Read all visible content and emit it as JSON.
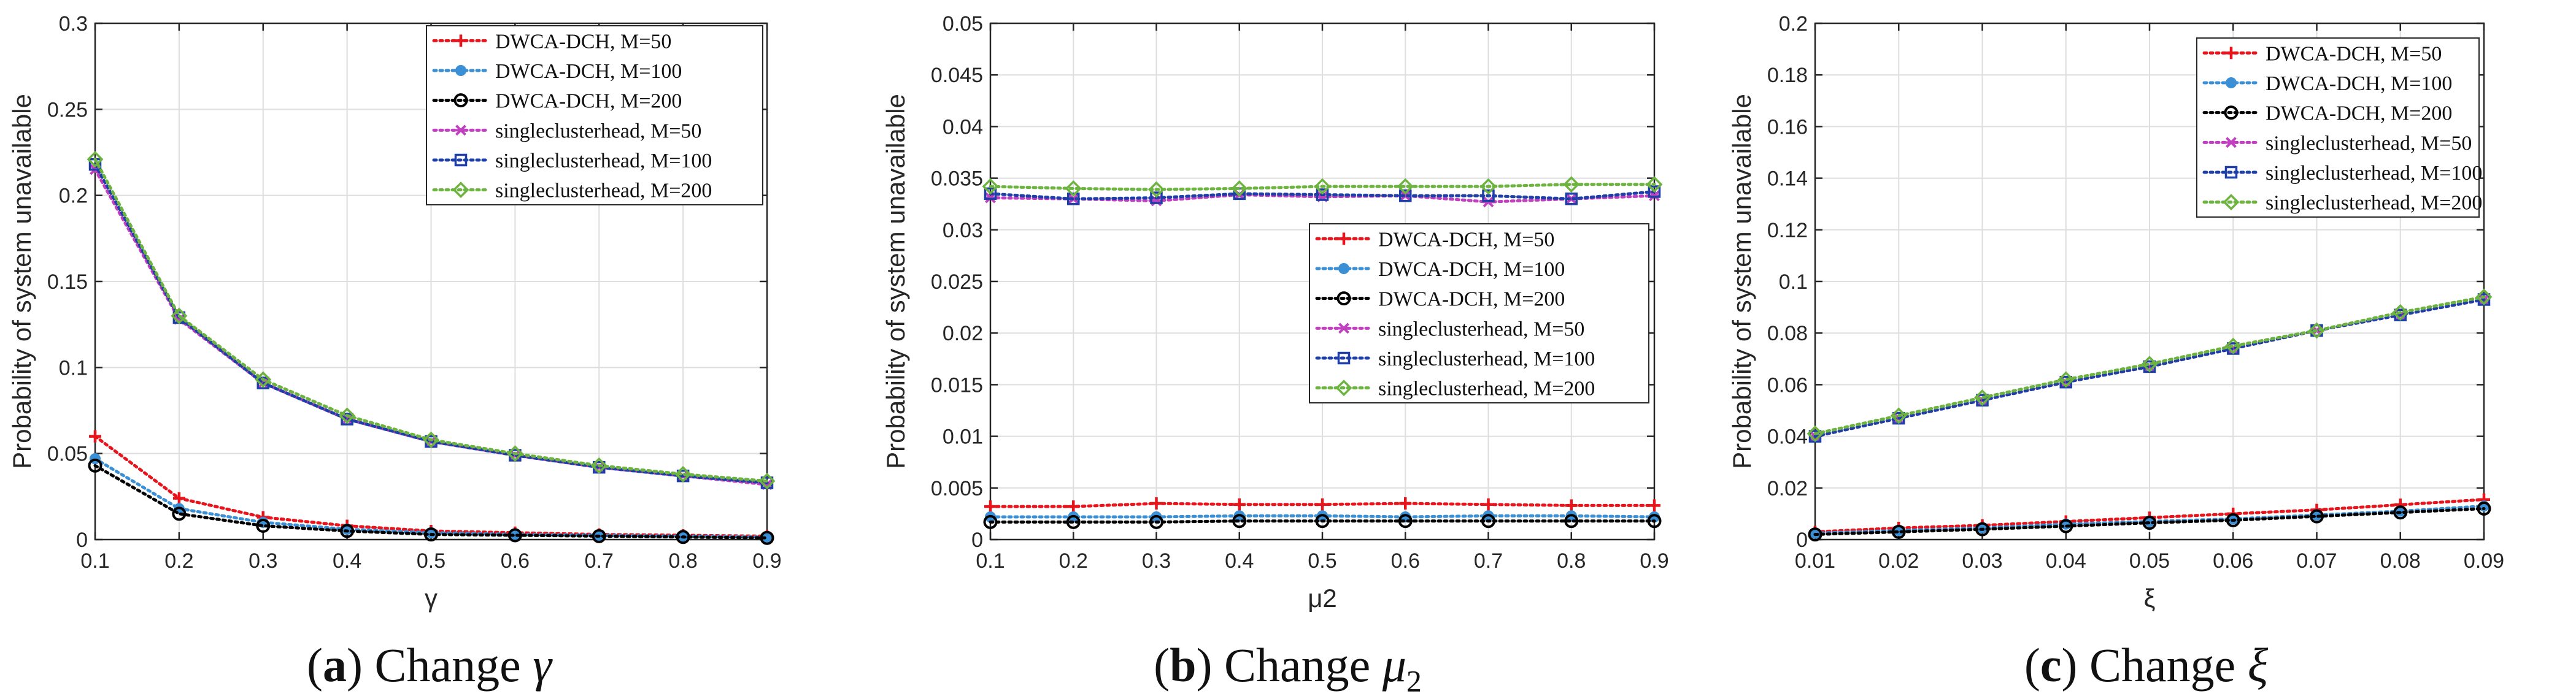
{
  "chart_data": [
    {
      "type": "line",
      "caption": {
        "label": "a",
        "text": "Change",
        "symbol": "γ"
      },
      "xlabel": "γ",
      "ylabel": "Probability of system unavailable",
      "x": [
        0.1,
        0.2,
        0.3,
        0.4,
        0.5,
        0.6,
        0.7,
        0.8,
        0.9
      ],
      "xlim": [
        0.1,
        0.9
      ],
      "ylim": [
        0,
        0.3
      ],
      "xticks": [
        "0.1",
        "0.2",
        "0.3",
        "0.4",
        "0.5",
        "0.6",
        "0.7",
        "0.8",
        "0.9"
      ],
      "yticks": [
        "0",
        "0.05",
        "0.1",
        "0.15",
        "0.2",
        "0.25",
        "0.3"
      ],
      "grid": true,
      "legend_position": "top-right",
      "series": [
        {
          "name": "DWCA-DCH, M=50",
          "color": "#e8141b",
          "marker": "plus",
          "values": [
            0.06,
            0.024,
            0.013,
            0.008,
            0.005,
            0.004,
            0.003,
            0.0025,
            0.002
          ]
        },
        {
          "name": "DWCA-DCH, M=100",
          "color": "#3b8fd4",
          "marker": "dot",
          "values": [
            0.047,
            0.018,
            0.01,
            0.006,
            0.004,
            0.003,
            0.0025,
            0.002,
            0.0015
          ]
        },
        {
          "name": "DWCA-DCH, M=200",
          "color": "#000000",
          "marker": "circle",
          "values": [
            0.043,
            0.015,
            0.008,
            0.005,
            0.003,
            0.0025,
            0.002,
            0.0015,
            0.001
          ]
        },
        {
          "name": "singleclusterhead, M=50",
          "color": "#c040c0",
          "marker": "cross",
          "values": [
            0.215,
            0.128,
            0.091,
            0.07,
            0.057,
            0.049,
            0.042,
            0.037,
            0.032
          ]
        },
        {
          "name": "singleclusterhead, M=100",
          "color": "#1f3fa8",
          "marker": "square",
          "values": [
            0.218,
            0.129,
            0.091,
            0.07,
            0.057,
            0.049,
            0.042,
            0.037,
            0.033
          ]
        },
        {
          "name": "singleclusterhead, M=200",
          "color": "#6db33f",
          "marker": "diamond",
          "values": [
            0.221,
            0.13,
            0.093,
            0.072,
            0.058,
            0.05,
            0.043,
            0.038,
            0.034
          ]
        }
      ]
    },
    {
      "type": "line",
      "caption": {
        "label": "b",
        "text": "Change",
        "symbol": "μ",
        "sub": "2"
      },
      "xlabel": "μ2",
      "ylabel": "Probability of system unavailable",
      "x": [
        0.1,
        0.2,
        0.3,
        0.4,
        0.5,
        0.6,
        0.7,
        0.8,
        0.9
      ],
      "xlim": [
        0.1,
        0.9
      ],
      "ylim": [
        0,
        0.05
      ],
      "xticks": [
        "0.1",
        "0.2",
        "0.3",
        "0.4",
        "0.5",
        "0.6",
        "0.7",
        "0.8",
        "0.9"
      ],
      "yticks": [
        "0",
        "0.005",
        "0.01",
        "0.015",
        "0.02",
        "0.025",
        "0.03",
        "0.035",
        "0.04",
        "0.045",
        "0.05"
      ],
      "grid": true,
      "legend_position": "center-right",
      "series": [
        {
          "name": "DWCA-DCH, M=50",
          "color": "#e8141b",
          "marker": "plus",
          "values": [
            0.0032,
            0.0032,
            0.0035,
            0.0034,
            0.0034,
            0.0035,
            0.0034,
            0.0033,
            0.0033
          ]
        },
        {
          "name": "DWCA-DCH, M=100",
          "color": "#3b8fd4",
          "marker": "dot",
          "values": [
            0.0022,
            0.0022,
            0.0022,
            0.0023,
            0.0023,
            0.0022,
            0.0023,
            0.0023,
            0.0022
          ]
        },
        {
          "name": "DWCA-DCH, M=200",
          "color": "#000000",
          "marker": "circle",
          "values": [
            0.0017,
            0.0017,
            0.0017,
            0.0018,
            0.0018,
            0.0018,
            0.0018,
            0.0018,
            0.0018
          ]
        },
        {
          "name": "singleclusterhead, M=50",
          "color": "#c040c0",
          "marker": "cross",
          "values": [
            0.0331,
            0.033,
            0.0328,
            0.0334,
            0.0332,
            0.0333,
            0.0327,
            0.033,
            0.0333
          ]
        },
        {
          "name": "singleclusterhead, M=100",
          "color": "#1f3fa8",
          "marker": "square",
          "values": [
            0.0335,
            0.033,
            0.0331,
            0.0335,
            0.0334,
            0.0333,
            0.0333,
            0.033,
            0.0337
          ]
        },
        {
          "name": "singleclusterhead, M=200",
          "color": "#6db33f",
          "marker": "diamond",
          "values": [
            0.0342,
            0.034,
            0.0339,
            0.034,
            0.0342,
            0.0342,
            0.0342,
            0.0344,
            0.0344
          ]
        }
      ]
    },
    {
      "type": "line",
      "caption": {
        "label": "c",
        "text": "Change",
        "symbol": "ξ"
      },
      "xlabel": "ξ",
      "ylabel": "Probability of system unavailable",
      "x": [
        0.01,
        0.02,
        0.03,
        0.04,
        0.05,
        0.06,
        0.07,
        0.08,
        0.09
      ],
      "xlim": [
        0.01,
        0.09
      ],
      "ylim": [
        0,
        0.2
      ],
      "xticks": [
        "0.01",
        "0.02",
        "0.03",
        "0.04",
        "0.05",
        "0.06",
        "0.07",
        "0.08",
        "0.09"
      ],
      "yticks": [
        "0",
        "0.02",
        "0.04",
        "0.06",
        "0.08",
        "0.1",
        "0.12",
        "0.14",
        "0.16",
        "0.18",
        "0.2"
      ],
      "grid": true,
      "legend_position": "top-right",
      "series": [
        {
          "name": "DWCA-DCH, M=50",
          "color": "#e8141b",
          "marker": "plus",
          "values": [
            0.003,
            0.0045,
            0.0055,
            0.007,
            0.0085,
            0.01,
            0.0115,
            0.0135,
            0.0155
          ]
        },
        {
          "name": "DWCA-DCH, M=100",
          "color": "#3b8fd4",
          "marker": "dot",
          "values": [
            0.0025,
            0.0035,
            0.0045,
            0.006,
            0.007,
            0.008,
            0.0095,
            0.011,
            0.013
          ]
        },
        {
          "name": "DWCA-DCH, M=200",
          "color": "#000000",
          "marker": "circle",
          "values": [
            0.002,
            0.003,
            0.004,
            0.0052,
            0.0065,
            0.0075,
            0.009,
            0.0105,
            0.012
          ]
        },
        {
          "name": "singleclusterhead, M=50",
          "color": "#c040c0",
          "marker": "cross",
          "values": [
            0.04,
            0.047,
            0.054,
            0.061,
            0.067,
            0.074,
            0.081,
            0.087,
            0.093
          ]
        },
        {
          "name": "singleclusterhead, M=100",
          "color": "#1f3fa8",
          "marker": "square",
          "values": [
            0.04,
            0.047,
            0.054,
            0.061,
            0.067,
            0.074,
            0.081,
            0.087,
            0.093
          ]
        },
        {
          "name": "singleclusterhead, M=200",
          "color": "#6db33f",
          "marker": "diamond",
          "values": [
            0.041,
            0.048,
            0.055,
            0.062,
            0.068,
            0.075,
            0.081,
            0.088,
            0.094
          ]
        }
      ]
    }
  ]
}
